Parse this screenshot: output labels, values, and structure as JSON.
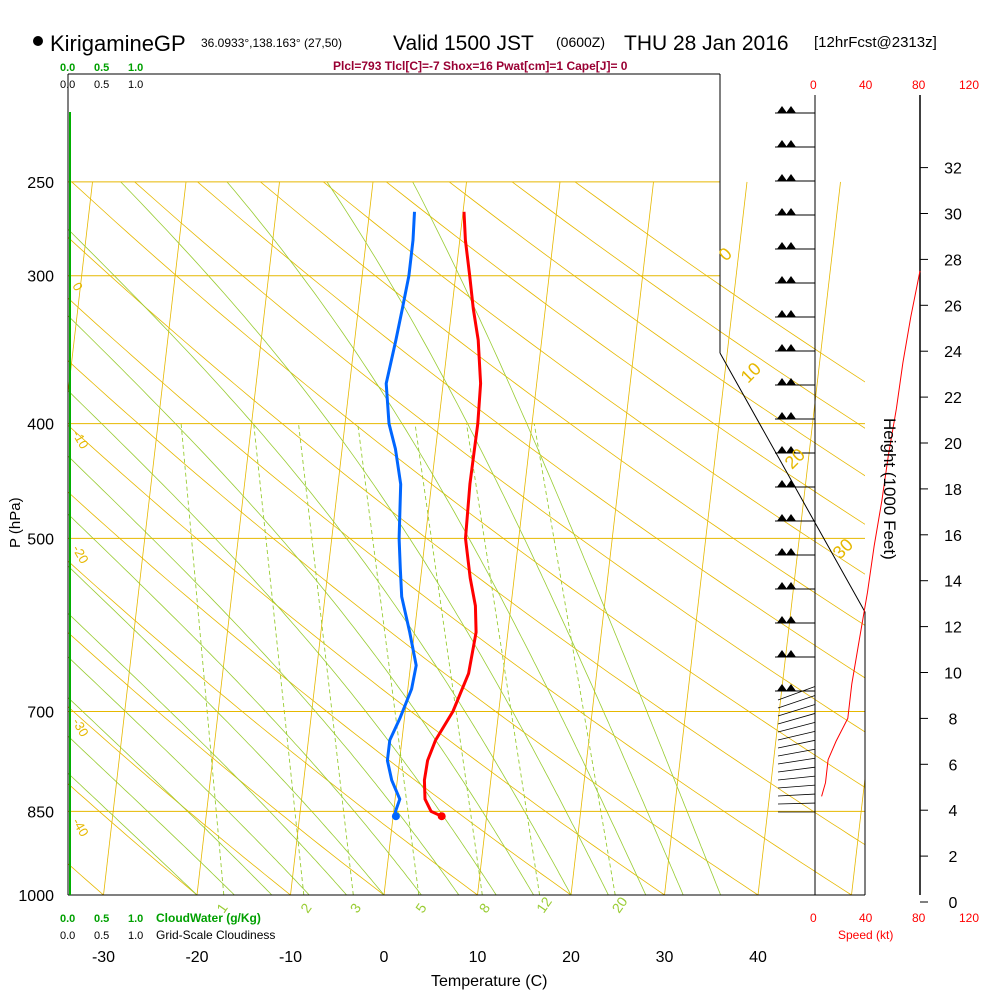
{
  "header": {
    "station": "KirigamineGP",
    "coords": "36.0933°,138.163° (27,50)",
    "valid_prefix": "Valid 1500 JST",
    "zulu": "(0600Z)",
    "date": "THU 28 Jan 2016",
    "forecast": "[12hrFcst@2313z]"
  },
  "params_line": "Plcl=793 Tlcl[C]=-7 Shox=16 Pwat[cm]=1 Cape[J]= 0",
  "scales": {
    "cloudwater_ticks": [
      "0.0",
      "0.5",
      "1.0"
    ],
    "cloudiness_ticks": [
      "0.0",
      "0.5",
      "1.0"
    ],
    "cloudwater_label": "CloudWater (g/Kg)",
    "cloudiness_label": "Grid-Scale Cloudiness",
    "speed_ticks": [
      "0",
      "40",
      "80",
      "120"
    ],
    "speed_label": "Speed (kt)"
  },
  "colors": {
    "temperature": "#ff0000",
    "dewpoint": "#0066ff",
    "isobar": "#e6b800",
    "mixing_ratio": "#99cc33",
    "cloudwater": "#00a000",
    "speed": "#ff0000",
    "params": "#990033"
  },
  "chart_data": {
    "type": "line",
    "subtype": "skew-T log-P sounding",
    "xlabel": "Temperature (C)",
    "ylabel": "P (hPa)",
    "y2label": "Height (1000 Feet)",
    "xlim": [
      -35,
      48
    ],
    "ylim": [
      1000,
      250
    ],
    "y_scale": "log",
    "x_ticks": [
      -30,
      -20,
      -10,
      0,
      10,
      20,
      30,
      40
    ],
    "p_ticks": [
      250,
      300,
      400,
      500,
      700,
      850,
      1000
    ],
    "height_ticks": [
      0,
      2,
      4,
      6,
      8,
      10,
      12,
      14,
      16,
      18,
      20,
      22,
      24,
      26,
      28,
      30,
      32
    ],
    "isotherm_labels": [
      "40",
      "30",
      "20",
      "10",
      "0",
      "-10",
      "-20",
      "-30",
      "-40"
    ],
    "mixing_ratio_labels": [
      "1",
      "2",
      "3",
      "5",
      "8",
      "12",
      "20"
    ],
    "series": [
      {
        "name": "temperature",
        "points": [
          {
            "p": 858,
            "t": 5.2
          },
          {
            "p": 850,
            "t": 4.0
          },
          {
            "p": 830,
            "t": 3.2
          },
          {
            "p": 800,
            "t": 2.9
          },
          {
            "p": 770,
            "t": 3.0
          },
          {
            "p": 740,
            "t": 3.6
          },
          {
            "p": 700,
            "t": 5.1
          },
          {
            "p": 650,
            "t": 6.3
          },
          {
            "p": 600,
            "t": 6.6
          },
          {
            "p": 570,
            "t": 6.2
          },
          {
            "p": 540,
            "t": 5.3
          },
          {
            "p": 500,
            "t": 4.3
          },
          {
            "p": 450,
            "t": 4.1
          },
          {
            "p": 400,
            "t": 4.2
          },
          {
            "p": 370,
            "t": 4.0
          },
          {
            "p": 340,
            "t": 3.2
          },
          {
            "p": 320,
            "t": 2.3
          },
          {
            "p": 300,
            "t": 1.5
          },
          {
            "p": 280,
            "t": 0.6
          },
          {
            "p": 265,
            "t": 0.1
          }
        ]
      },
      {
        "name": "dewpoint",
        "points": [
          {
            "p": 858,
            "t": 0.3
          },
          {
            "p": 850,
            "t": 0.2
          },
          {
            "p": 830,
            "t": 0.5
          },
          {
            "p": 800,
            "t": -0.6
          },
          {
            "p": 770,
            "t": -1.3
          },
          {
            "p": 740,
            "t": -1.3
          },
          {
            "p": 710,
            "t": -0.5
          },
          {
            "p": 670,
            "t": 0.4
          },
          {
            "p": 640,
            "t": 0.6
          },
          {
            "p": 600,
            "t": -0.5
          },
          {
            "p": 560,
            "t": -1.8
          },
          {
            "p": 530,
            "t": -2.3
          },
          {
            "p": 500,
            "t": -2.8
          },
          {
            "p": 450,
            "t": -3.3
          },
          {
            "p": 420,
            "t": -4.3
          },
          {
            "p": 400,
            "t": -5.3
          },
          {
            "p": 370,
            "t": -6.1
          },
          {
            "p": 340,
            "t": -5.6
          },
          {
            "p": 320,
            "t": -5.3
          },
          {
            "p": 300,
            "t": -5.0
          },
          {
            "p": 280,
            "t": -5.0
          },
          {
            "p": 265,
            "t": -5.2
          }
        ]
      },
      {
        "name": "wind_speed",
        "points": [
          {
            "z": 4.6,
            "kt": 5
          },
          {
            "z": 5.2,
            "kt": 8
          },
          {
            "z": 6.2,
            "kt": 10
          },
          {
            "z": 7.0,
            "kt": 16
          },
          {
            "z": 8.0,
            "kt": 25
          },
          {
            "z": 9.5,
            "kt": 28
          },
          {
            "z": 11.5,
            "kt": 34
          },
          {
            "z": 13.5,
            "kt": 40
          },
          {
            "z": 15.5,
            "kt": 45
          },
          {
            "z": 17.5,
            "kt": 51
          },
          {
            "z": 19.5,
            "kt": 56
          },
          {
            "z": 21.5,
            "kt": 62
          },
          {
            "z": 23.5,
            "kt": 67
          },
          {
            "z": 25.5,
            "kt": 73
          },
          {
            "z": 27.5,
            "kt": 80
          }
        ]
      }
    ]
  }
}
